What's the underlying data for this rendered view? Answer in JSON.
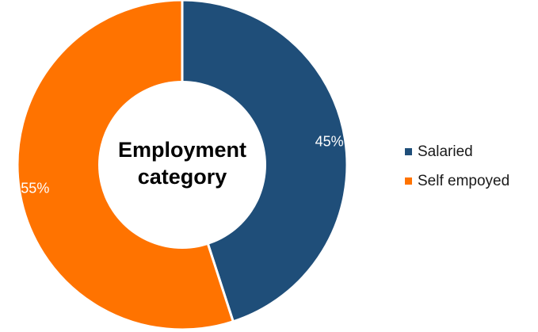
{
  "chart_data": {
    "type": "pie",
    "style": "donut",
    "title": "Employment category",
    "categories": [
      "Salaried",
      "Self empoyed"
    ],
    "values": [
      45,
      55
    ],
    "labels": [
      "45%",
      "55%"
    ],
    "colors": [
      "#1F4E79",
      "#FF7300"
    ],
    "legend": "right"
  },
  "center_title": {
    "line1": "Employment",
    "line2": "category"
  },
  "legend": {
    "items": [
      {
        "label": "Salaried",
        "color": "#1F4E79"
      },
      {
        "label": "Self empoyed",
        "color": "#FF7300"
      }
    ]
  }
}
